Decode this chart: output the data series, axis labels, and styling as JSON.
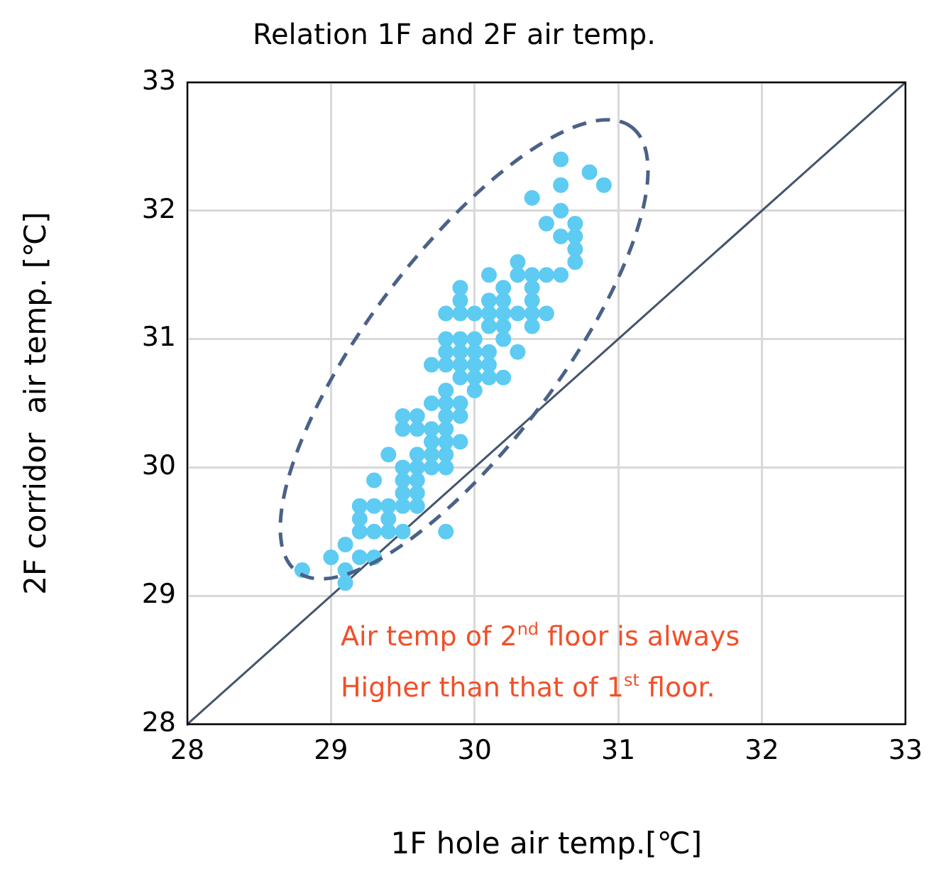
{
  "chart_data": {
    "type": "scatter",
    "title": "Relation 1F and 2F air temp.",
    "xlabel": "1F hole air temp.[℃]",
    "ylabel": "2F corridor  air temp. [℃]",
    "xlim": [
      28,
      33
    ],
    "ylim": [
      28,
      33
    ],
    "xticks": [
      28,
      29,
      30,
      31,
      32,
      33
    ],
    "yticks": [
      28,
      29,
      30,
      31,
      32,
      33
    ],
    "grid": true,
    "marker": "circle",
    "series": [
      {
        "color": "#5ecbf3",
        "x": [
          30.6,
          30.8,
          30.9,
          30.6,
          30.4,
          30.6,
          30.5,
          30.7,
          30.6,
          30.7,
          30.7,
          30.7,
          30.3,
          30.1,
          30.3,
          30.4,
          30.5,
          30.6,
          29.9,
          30.2,
          30.4,
          29.9,
          30.1,
          30.2,
          30.4,
          29.8,
          29.9,
          30.0,
          30.1,
          30.2,
          30.3,
          30.4,
          30.5,
          30.1,
          30.2,
          30.4,
          29.8,
          29.9,
          30.0,
          30.2,
          29.8,
          29.9,
          30.0,
          30.1,
          30.3,
          29.7,
          29.8,
          29.9,
          30.0,
          30.1,
          29.9,
          30.0,
          30.1,
          30.2,
          29.8,
          30.0,
          29.7,
          29.8,
          29.9,
          29.5,
          29.6,
          29.8,
          29.9,
          29.5,
          29.6,
          29.7,
          29.8,
          29.7,
          29.8,
          29.9,
          29.4,
          29.6,
          29.7,
          29.8,
          29.5,
          29.6,
          29.7,
          29.8,
          29.3,
          29.5,
          29.6,
          29.5,
          29.6,
          29.2,
          29.3,
          29.4,
          29.5,
          29.6,
          29.2,
          29.4,
          29.2,
          29.3,
          29.4,
          29.5,
          29.8,
          29.1,
          29.0,
          29.2,
          29.3,
          28.8,
          29.1,
          29.1
        ],
        "values": [
          32.4,
          32.3,
          32.2,
          32.2,
          32.1,
          32.0,
          31.9,
          31.9,
          31.8,
          31.8,
          31.7,
          31.6,
          31.6,
          31.5,
          31.5,
          31.5,
          31.5,
          31.5,
          31.4,
          31.4,
          31.4,
          31.3,
          31.3,
          31.3,
          31.3,
          31.2,
          31.2,
          31.2,
          31.2,
          31.2,
          31.2,
          31.2,
          31.2,
          31.1,
          31.1,
          31.1,
          31.0,
          31.0,
          31.0,
          31.0,
          30.9,
          30.9,
          30.9,
          30.9,
          30.9,
          30.8,
          30.8,
          30.8,
          30.8,
          30.8,
          30.7,
          30.7,
          30.7,
          30.7,
          30.6,
          30.6,
          30.5,
          30.5,
          30.5,
          30.4,
          30.4,
          30.4,
          30.4,
          30.3,
          30.3,
          30.3,
          30.3,
          30.2,
          30.2,
          30.2,
          30.1,
          30.1,
          30.1,
          30.1,
          30.0,
          30.0,
          30.0,
          30.0,
          29.9,
          29.9,
          29.9,
          29.8,
          29.8,
          29.7,
          29.7,
          29.7,
          29.7,
          29.7,
          29.6,
          29.6,
          29.5,
          29.5,
          29.5,
          29.5,
          29.5,
          29.4,
          29.3,
          29.3,
          29.3,
          29.2,
          29.2,
          29.1
        ]
      },
      {
        "type": "line",
        "color": "#44546a",
        "x": [
          28,
          33
        ],
        "values": [
          28,
          33
        ],
        "line_style": "solid",
        "marker": "none"
      }
    ],
    "annotations": [
      "Air temp of 2$^{nd}$ floor is always",
      "Higher than that of 1$^{st}$ floor."
    ]
  }
}
